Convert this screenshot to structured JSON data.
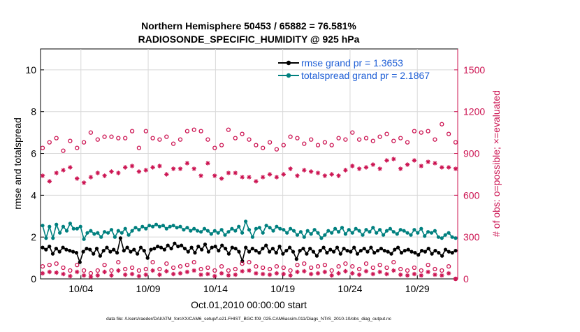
{
  "chart_data": {
    "type": "line",
    "title_line1": "Northern Hemisphere 50453 / 65882 = 76.581%",
    "title_line2": "RADIOSONDE_SPECIFIC_HUMIDITY @ 925 hPa",
    "xlabel": "Oct.01,2010 00:00:00 start",
    "ylabel_left": "rmse and totalspread",
    "ylabel_right": "# of obs: o=possible; ×=evaluated",
    "footer": "data file: /Users/raeder/DAI/ATM_forcXX/CAM6_setup/f.e21.FHIST_BGC.f09_025.CAM6assim.011/Diags_NTrS_2010-10/obs_diag_output.nc",
    "x_ticks": [
      "10/04",
      "10/09",
      "10/14",
      "10/19",
      "10/24",
      "10/29"
    ],
    "x_tick_days": [
      4,
      9,
      14,
      19,
      24,
      29
    ],
    "xlim_days": [
      1,
      32
    ],
    "ylim_left": [
      0,
      11
    ],
    "yticks_left": [
      "0",
      "2",
      "4",
      "6",
      "8",
      "10"
    ],
    "ylim_right": [
      0,
      1650
    ],
    "yticks_right": [
      "0",
      "300",
      "600",
      "900",
      "1200",
      "1500"
    ],
    "legend_position": "top-right",
    "colors": {
      "rmse": "#000000",
      "spread": "#00807f",
      "obs": "#cc1452",
      "legend_text": "#1f5fd6"
    },
    "series": [
      {
        "name": "rmse grand pr = 1.3653",
        "key": "rmse",
        "values": [
          1.5,
          1.4,
          1.55,
          1.2,
          1.45,
          1.3,
          1.5,
          1.4,
          1.35,
          1.3,
          1.25,
          0.8,
          1.3,
          1.45,
          1.4,
          1.2,
          1.45,
          1.1,
          1.35,
          1.5,
          1.3,
          1.4,
          1.25,
          1.95,
          1.35,
          1.5,
          1.3,
          1.4,
          1.2,
          1.5,
          1.35,
          1.0,
          1.4,
          1.45,
          1.55,
          1.5,
          1.4,
          1.6,
          1.45,
          1.7,
          1.55,
          1.6,
          1.45,
          1.3,
          1.5,
          1.25,
          1.55,
          1.4,
          1.65,
          1.3,
          1.5,
          1.55,
          1.35,
          1.6,
          1.45,
          1.2,
          1.5,
          1.45,
          1.3,
          0.85,
          1.5,
          1.3,
          1.45,
          1.35,
          1.25,
          1.45,
          1.6,
          1.3,
          1.45,
          1.25,
          1.55,
          1.2,
          1.35,
          1.5,
          1.3,
          0.95,
          1.35,
          1.45,
          1.2,
          1.45,
          1.3,
          1.1,
          1.35,
          1.5,
          1.25,
          1.4,
          1.3,
          1.5,
          1.2,
          1.45,
          1.35,
          1.3,
          1.5,
          1.2,
          1.35,
          1.45,
          1.3,
          1.5,
          1.25,
          1.35,
          1.45,
          1.35,
          1.3,
          1.2,
          1.4,
          1.5,
          1.25,
          1.35,
          1.4,
          1.3,
          1.25,
          1.15,
          1.35,
          1.3,
          1.45,
          1.2,
          1.35,
          1.25,
          1.1,
          1.4,
          1.3,
          1.25,
          1.35
        ]
      },
      {
        "name": "totalspread grand pr = 2.1867",
        "key": "spread",
        "values": [
          2.55,
          1.95,
          2.5,
          1.95,
          2.6,
          2.2,
          2.5,
          2.3,
          2.65,
          2.4,
          2.4,
          2.5,
          1.9,
          2.2,
          2.3,
          2.15,
          2.2,
          2.0,
          2.25,
          2.2,
          2.35,
          2.0,
          2.3,
          2.2,
          2.4,
          2.1,
          2.3,
          2.45,
          2.35,
          2.5,
          2.4,
          2.55,
          2.5,
          2.6,
          2.5,
          2.55,
          2.4,
          2.5,
          2.55,
          2.45,
          2.5,
          2.35,
          2.45,
          2.3,
          2.4,
          2.3,
          2.25,
          2.4,
          2.3,
          2.15,
          2.3,
          2.2,
          2.35,
          2.1,
          2.25,
          2.4,
          2.3,
          2.5,
          2.2,
          2.75,
          2.35,
          2.0,
          2.4,
          2.45,
          2.2,
          2.55,
          2.45,
          2.3,
          2.5,
          2.4,
          2.35,
          2.2,
          2.4,
          2.3,
          2.1,
          2.25,
          2.0,
          2.3,
          2.15,
          2.35,
          2.2,
          1.95,
          2.1,
          2.3,
          2.2,
          2.4,
          2.25,
          2.45,
          2.15,
          2.35,
          2.2,
          2.4,
          2.3,
          2.1,
          2.35,
          2.25,
          2.45,
          2.2,
          2.35,
          2.1,
          2.3,
          2.4,
          2.25,
          2.15,
          2.35,
          2.3,
          2.2,
          2.1,
          2.35,
          2.2,
          2.4,
          2.05,
          2.25,
          2.2,
          2.3,
          2.0,
          1.95,
          2.1,
          2.2,
          2.0,
          1.95
        ]
      },
      {
        "name": "o=possible",
        "key": "possible",
        "values": [
          940,
          1020,
          980,
          930,
          1010,
          960,
          920,
          1010,
          990,
          950,
          940,
          1020,
          980,
          960,
          1050,
          1010,
          1000,
          960,
          1020,
          980,
          1020,
          970,
          1010,
          1070,
          1010,
          960,
          1060,
          1020,
          940,
          1000,
          1060,
          980,
          1010,
          1020,
          1000,
          960,
          1020,
          1030,
          970,
          1050,
          1000,
          1110,
          1060,
          1030,
          1070,
          960,
          1060,
          1060,
          1000,
          1000,
          940,
          1000,
          960,
          1000,
          1070,
          990,
          1010,
          960,
          1040,
          960,
          1000,
          950,
          960,
          930,
          940,
          1010,
          980,
          1010,
          930,
          1070,
          960,
          990,
          1020,
          940,
          1010,
          960,
          970,
          940,
          1000,
          950,
          960,
          920,
          980,
          930,
          960,
          940,
          1010,
          960,
          1000,
          950,
          1050,
          960,
          1000,
          950,
          1010,
          970,
          990,
          960,
          1020,
          960,
          1040,
          950,
          990,
          960,
          1010,
          960,
          980,
          950,
          1060,
          990,
          1050,
          1000,
          1060,
          970,
          1000,
          960,
          1110,
          1070,
          1040,
          1000,
          980
        ]
      },
      {
        "name": "x=evaluated",
        "key": "evaluated",
        "values": [
          740,
          770,
          700,
          810,
          760,
          720,
          780,
          740,
          800,
          770,
          720,
          760,
          690,
          750,
          730,
          770,
          760,
          760,
          740,
          800,
          770,
          720,
          760,
          780,
          800,
          750,
          810,
          830,
          770,
          800,
          780,
          780,
          800,
          790,
          810,
          770,
          750,
          790,
          790,
          780,
          790,
          880,
          830,
          800,
          790,
          820,
          740,
          840,
          830,
          800,
          740,
          740,
          720,
          740,
          760,
          720,
          760,
          700,
          730,
          700,
          730,
          710,
          700,
          700,
          730,
          760,
          750,
          760,
          730,
          760,
          750,
          760,
          790,
          760,
          740,
          740,
          780,
          760,
          770,
          760,
          760,
          780,
          740,
          700,
          750,
          760,
          740,
          780,
          780,
          750,
          810,
          760,
          790,
          830,
          800,
          780,
          820,
          800,
          790,
          780,
          850,
          790,
          860,
          800,
          790,
          790,
          820,
          790,
          850,
          800,
          810,
          800,
          840,
          810,
          830,
          870,
          800,
          790,
          800,
          780,
          790
        ]
      },
      {
        "name": "o=possible (lower)",
        "key": "possible_low",
        "values": [
          90,
          70,
          100,
          60,
          110,
          50,
          80,
          70,
          60,
          90,
          100,
          70,
          60,
          80,
          40,
          70,
          60,
          80,
          100,
          70,
          60,
          110,
          120,
          90,
          70,
          60,
          80,
          100,
          60,
          90,
          70,
          60,
          120,
          80,
          70,
          60,
          110,
          50,
          80,
          60,
          90,
          70,
          100,
          80,
          120,
          90,
          70,
          60,
          80,
          110,
          60,
          70,
          90,
          80,
          60,
          100,
          70,
          90,
          110,
          80,
          120,
          70,
          90,
          60,
          80,
          100,
          70,
          60,
          90,
          110,
          80,
          70,
          60,
          90,
          100,
          80,
          110,
          70,
          80,
          60,
          90,
          70,
          100,
          80,
          60,
          70,
          90,
          80,
          110,
          70,
          90,
          80,
          70,
          60,
          110,
          90,
          80,
          70,
          100,
          60,
          80,
          90,
          120,
          80,
          70,
          100,
          60,
          90,
          80,
          70,
          60,
          80,
          100,
          90,
          70,
          80,
          60,
          20,
          90,
          60,
          0
        ]
      },
      {
        "name": "x=evaluated (lower)",
        "key": "evaluated_low",
        "values": [
          40,
          30,
          50,
          20,
          45,
          25,
          35,
          30,
          20,
          40,
          50,
          30,
          25,
          35,
          15,
          30,
          25,
          40,
          50,
          30,
          25,
          55,
          60,
          40,
          30,
          25,
          35,
          50,
          20,
          40,
          30,
          25,
          60,
          35,
          30,
          25,
          55,
          20,
          35,
          25,
          40,
          30,
          50,
          35,
          60,
          40,
          30,
          25,
          35,
          55,
          20,
          30,
          40,
          35,
          25,
          50,
          30,
          40,
          55,
          35,
          60,
          30,
          40,
          25,
          35,
          50,
          30,
          25,
          40,
          55,
          35,
          30,
          25,
          40,
          50,
          35,
          55,
          30,
          35,
          25,
          40,
          30,
          50,
          35,
          25,
          30,
          40,
          35,
          55,
          30,
          40,
          35,
          30,
          25,
          55,
          40,
          35,
          30,
          50,
          25,
          35,
          40,
          60,
          35,
          30,
          50,
          25,
          40,
          35,
          30,
          25,
          35,
          50,
          40,
          30,
          35,
          25,
          10,
          40,
          25,
          0
        ]
      }
    ]
  }
}
